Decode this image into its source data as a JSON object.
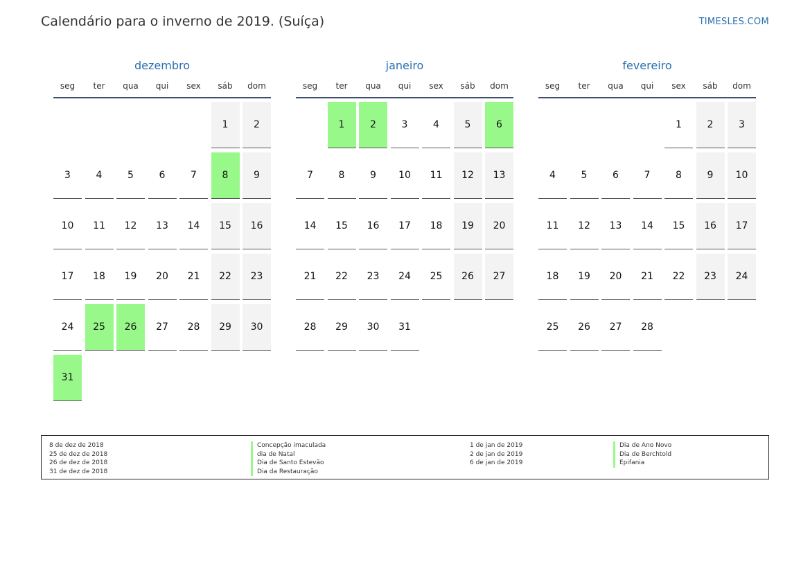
{
  "header": {
    "title": "Calendário para o inverno de 2019. (Suíça)",
    "site": "TIMESLES.COM"
  },
  "colors": {
    "accent": "#2a6fb0",
    "holiday": "#98f98a",
    "weekend": "#f3f3f3"
  },
  "weekdays": [
    "seg",
    "ter",
    "qua",
    "qui",
    "sex",
    "sáb",
    "dom"
  ],
  "months": [
    {
      "name": "dezembro",
      "start_weekday": 5,
      "days": 31,
      "holidays": [
        8,
        25,
        26,
        31
      ]
    },
    {
      "name": "janeiro",
      "start_weekday": 1,
      "days": 31,
      "holidays": [
        1,
        2,
        6
      ]
    },
    {
      "name": "fevereiro",
      "start_weekday": 4,
      "days": 28,
      "holidays": []
    }
  ],
  "legend": {
    "left": [
      {
        "date": "8 de dez de 2018",
        "name": "Concepção imaculada"
      },
      {
        "date": "25 de dez de 2018",
        "name": "dia de Natal"
      },
      {
        "date": "26 de dez de 2018",
        "name": "Dia de Santo Estevão"
      },
      {
        "date": "31 de dez de 2018",
        "name": "Dia da Restauração"
      }
    ],
    "right": [
      {
        "date": "1 de jan de 2019",
        "name": "Dia de Ano Novo"
      },
      {
        "date": "2 de jan de 2019",
        "name": "Dia de Berchtold"
      },
      {
        "date": "6 de jan de 2019",
        "name": "Epifania"
      }
    ]
  }
}
